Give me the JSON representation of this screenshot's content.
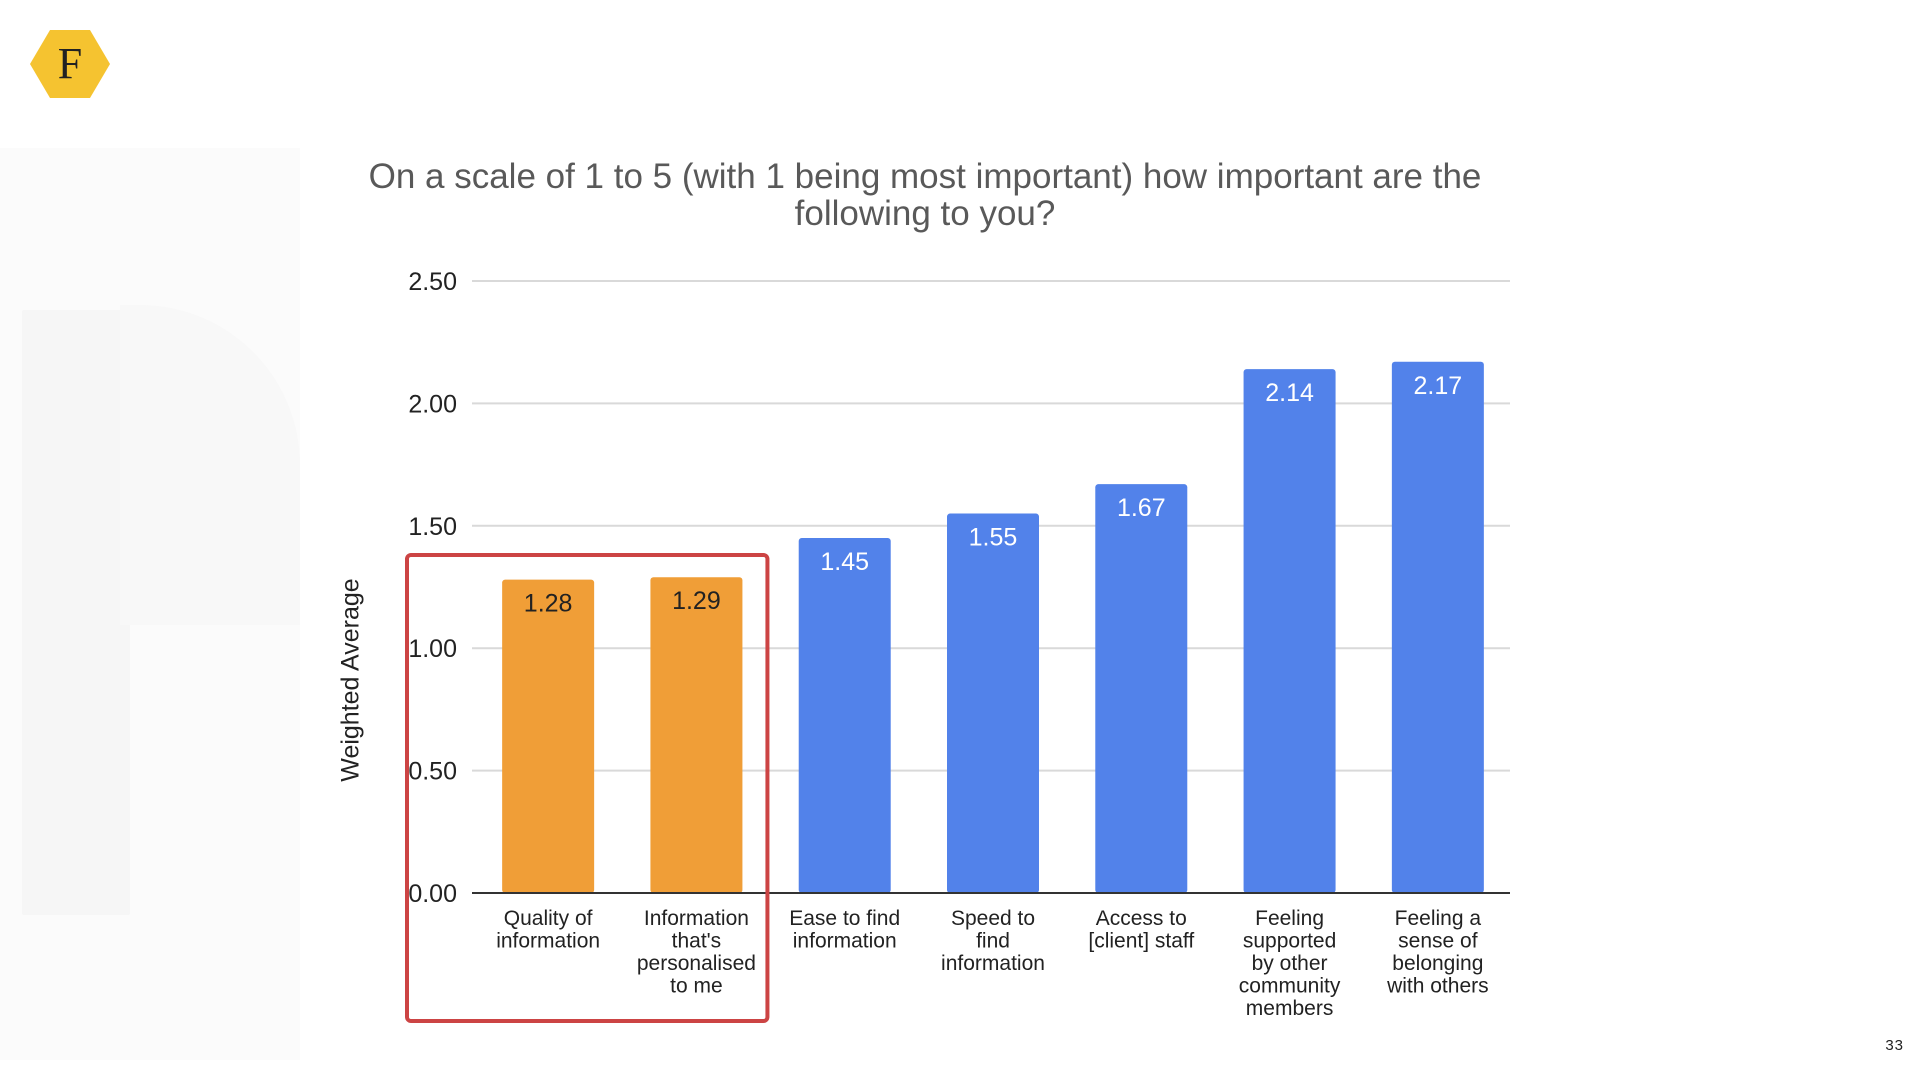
{
  "slide": {
    "page_number": "33",
    "logo_letter": "F",
    "logo_color": "#F5C330"
  },
  "chart_data": {
    "type": "bar",
    "title": "On a scale of 1 to 5 (with 1 being most important) how important are the following to you?",
    "xlabel": "",
    "ylabel": "Weighted Average",
    "ylim": [
      0,
      2.5
    ],
    "yticks": [
      "0.00",
      "0.50",
      "1.00",
      "1.50",
      "2.00",
      "2.50"
    ],
    "categories": [
      [
        "Quality of",
        "information"
      ],
      [
        "Information",
        "that's",
        "personalised",
        "to me"
      ],
      [
        "Ease to find",
        "information"
      ],
      [
        "Speed to",
        "find",
        "information"
      ],
      [
        "Access to",
        "[client] staff"
      ],
      [
        "Feeling",
        "supported",
        "by other",
        "community",
        "members"
      ],
      [
        "Feeling a",
        "sense of",
        "belonging",
        "with others"
      ]
    ],
    "values": [
      1.28,
      1.29,
      1.45,
      1.55,
      1.67,
      2.14,
      2.17
    ],
    "value_labels": [
      "1.28",
      "1.29",
      "1.45",
      "1.55",
      "1.67",
      "2.14",
      "2.17"
    ],
    "colors": [
      "#F09E37",
      "#F09E37",
      "#5282EA",
      "#5282EA",
      "#5282EA",
      "#5282EA",
      "#5282EA"
    ],
    "highlight": {
      "indices": [
        0,
        1
      ],
      "color": "#CC4444"
    },
    "grid": true,
    "gridline_color": "#D9D9D9",
    "axis_color": "#333333"
  }
}
